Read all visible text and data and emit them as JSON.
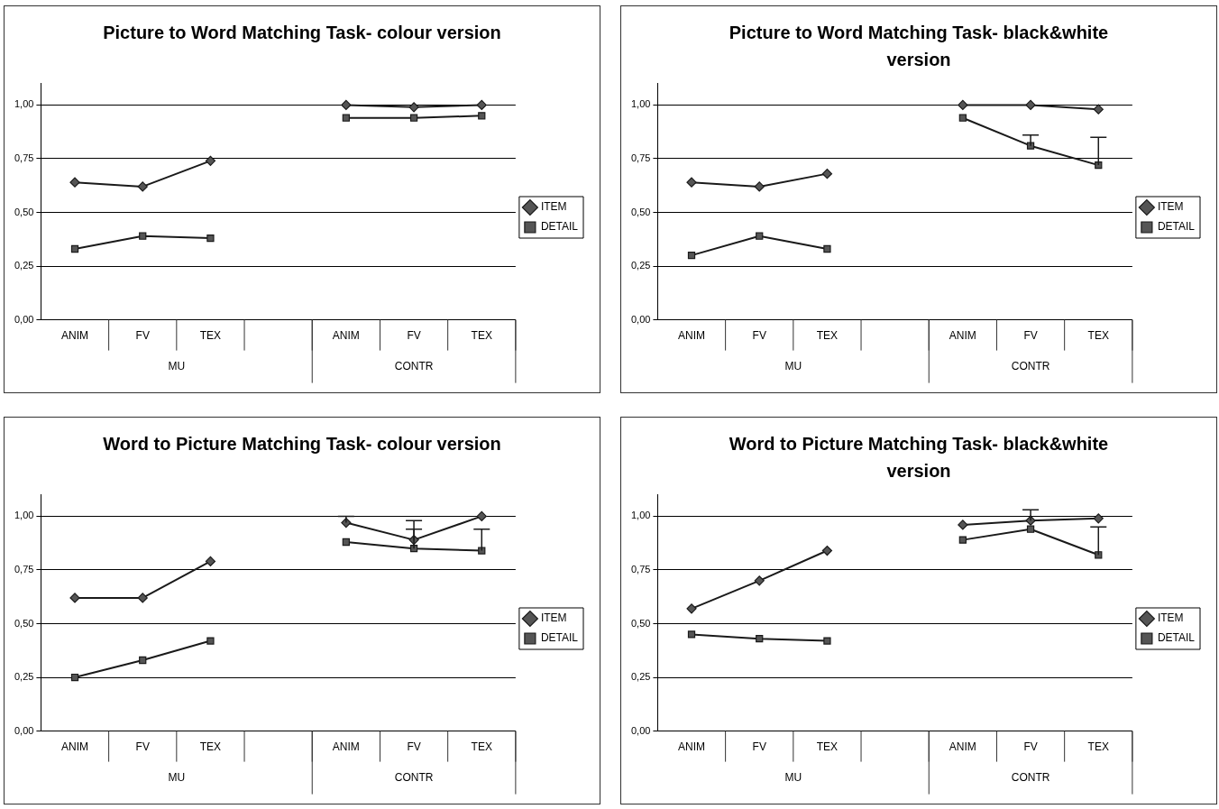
{
  "chart_data": [
    {
      "type": "line",
      "title": "Picture to Word Matching Task- colour version",
      "categories": [
        "ANIM",
        "FV",
        "TEX",
        null,
        "ANIM",
        "FV",
        "TEX"
      ],
      "annotations": [
        "MU",
        "CONTR"
      ],
      "ylim": [
        0,
        1.1
      ],
      "yticks": [
        {
          "value": 0,
          "label": "0,00"
        },
        {
          "value": 0.25,
          "label": "0,25"
        },
        {
          "value": 0.5,
          "label": "0,50"
        },
        {
          "value": 0.75,
          "label": "0,75"
        },
        {
          "value": 1,
          "label": "1,00"
        }
      ],
      "grid": "y",
      "legend": "right",
      "series": [
        {
          "name": "ITEM",
          "color": "#1a1a1a",
          "marker": "diamond",
          "values": [
            0.64,
            0.62,
            0.74,
            null,
            1.0,
            0.99,
            1.0
          ]
        },
        {
          "name": "DETAIL",
          "color": "#1a1a1a",
          "marker": "square",
          "values": [
            0.33,
            0.39,
            0.38,
            null,
            0.94,
            0.94,
            0.95
          ]
        }
      ]
    },
    {
      "type": "line",
      "title": "Picture to Word Matching Task- black&white version",
      "categories": [
        "ANIM",
        "FV",
        "TEX",
        null,
        "ANIM",
        "FV",
        "TEX"
      ],
      "annotations": [
        "MU",
        "CONTR"
      ],
      "ylim": [
        0,
        1.1
      ],
      "yticks": [
        {
          "value": 0,
          "label": "0,00"
        },
        {
          "value": 0.25,
          "label": "0,25"
        },
        {
          "value": 0.5,
          "label": "0,50"
        },
        {
          "value": 0.75,
          "label": "0,75"
        },
        {
          "value": 1,
          "label": "1,00"
        }
      ],
      "grid": "y",
      "legend": "right",
      "series": [
        {
          "name": "ITEM",
          "color": "#1a1a1a",
          "marker": "diamond",
          "values": [
            0.64,
            0.62,
            0.68,
            null,
            1.0,
            1.0,
            0.98
          ]
        },
        {
          "name": "DETAIL",
          "color": "#1a1a1a",
          "marker": "square",
          "values": [
            0.3,
            0.39,
            0.33,
            null,
            0.94,
            0.81,
            0.72
          ],
          "errors": [
            null,
            null,
            null,
            null,
            null,
            [
              0.81,
              0.86
            ],
            [
              0.72,
              0.85
            ]
          ]
        }
      ]
    },
    {
      "type": "line",
      "title": "Word to Picture Matching Task- colour version",
      "categories": [
        "ANIM",
        "FV",
        "TEX",
        null,
        "ANIM",
        "FV",
        "TEX"
      ],
      "annotations": [
        "MU",
        "CONTR"
      ],
      "ylim": [
        0,
        1.1
      ],
      "yticks": [
        {
          "value": 0,
          "label": "0,00"
        },
        {
          "value": 0.25,
          "label": "0,25"
        },
        {
          "value": 0.5,
          "label": "0,50"
        },
        {
          "value": 0.75,
          "label": "0,75"
        },
        {
          "value": 1,
          "label": "1,00"
        }
      ],
      "grid": "y",
      "legend": "right",
      "series": [
        {
          "name": "ITEM",
          "color": "#1a1a1a",
          "marker": "diamond",
          "values": [
            0.62,
            0.62,
            0.79,
            null,
            0.97,
            0.89,
            1.0
          ],
          "errors": [
            null,
            null,
            null,
            null,
            [
              0.97,
              1.0
            ],
            [
              0.89,
              0.98
            ],
            null
          ]
        },
        {
          "name": "DETAIL",
          "color": "#1a1a1a",
          "marker": "square",
          "values": [
            0.25,
            0.33,
            0.42,
            null,
            0.88,
            0.85,
            0.84
          ],
          "errors": [
            null,
            null,
            null,
            null,
            null,
            [
              0.85,
              0.94
            ],
            [
              0.84,
              0.94
            ]
          ]
        }
      ]
    },
    {
      "type": "line",
      "title": "Word to Picture Matching Task- black&white version",
      "categories": [
        "ANIM",
        "FV",
        "TEX",
        null,
        "ANIM",
        "FV",
        "TEX"
      ],
      "annotations": [
        "MU",
        "CONTR"
      ],
      "ylim": [
        0,
        1.1
      ],
      "yticks": [
        {
          "value": 0,
          "label": "0,00"
        },
        {
          "value": 0.25,
          "label": "0,25"
        },
        {
          "value": 0.5,
          "label": "0,50"
        },
        {
          "value": 0.75,
          "label": "0,75"
        },
        {
          "value": 1,
          "label": "1,00"
        }
      ],
      "grid": "y",
      "legend": "right",
      "series": [
        {
          "name": "ITEM",
          "color": "#1a1a1a",
          "marker": "diamond",
          "values": [
            0.57,
            0.7,
            0.84,
            null,
            0.96,
            0.98,
            0.99
          ],
          "errors": [
            null,
            null,
            null,
            null,
            null,
            [
              0.98,
              1.03
            ],
            null
          ]
        },
        {
          "name": "DETAIL",
          "color": "#1a1a1a",
          "marker": "square",
          "values": [
            0.45,
            0.43,
            0.42,
            null,
            0.89,
            0.94,
            0.82
          ],
          "errors": [
            null,
            null,
            null,
            null,
            null,
            null,
            [
              0.82,
              0.95
            ]
          ]
        }
      ]
    }
  ]
}
